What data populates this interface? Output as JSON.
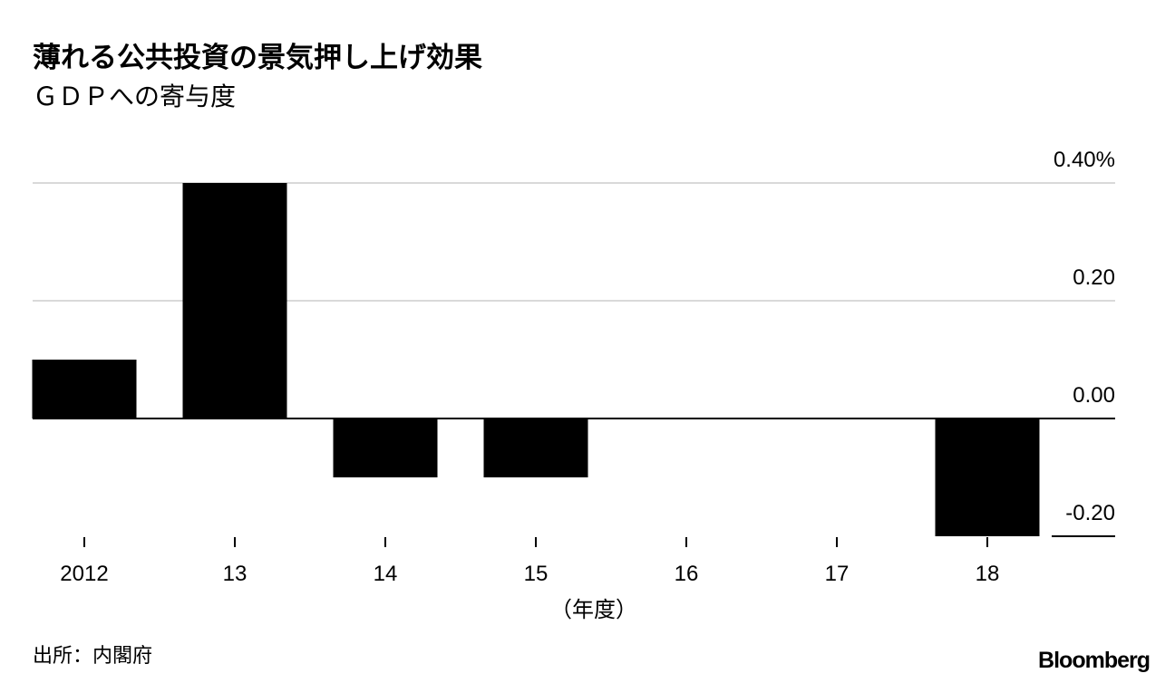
{
  "chart_data": {
    "type": "bar",
    "title": "薄れる公共投資の景気押し上げ効果",
    "subtitle": "ＧＤＰへの寄与度",
    "x_label": "（年度）",
    "categories": [
      "2012",
      "13",
      "14",
      "15",
      "16",
      "17",
      "18"
    ],
    "values": [
      0.1,
      0.4,
      -0.1,
      -0.1,
      0,
      0,
      -0.2
    ],
    "color": "#000000",
    "ylim": [
      -0.2,
      0.4
    ],
    "yticks": [
      {
        "value": 0.4,
        "label": "0.40%"
      },
      {
        "value": 0.2,
        "label": "0.20"
      },
      {
        "value": 0,
        "label": "0.00"
      },
      {
        "value": -0.2,
        "label": "-0.20"
      }
    ],
    "grid": true,
    "source": "出所：内閣府",
    "logo": "Bloomberg"
  }
}
